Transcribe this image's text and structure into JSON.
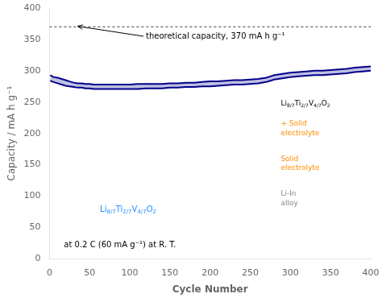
{
  "chart_data": {
    "type": "line",
    "xlabel": "Cycle Number",
    "ylabel": "Capacity / mA h g⁻¹",
    "x": [
      1,
      5,
      10,
      15,
      20,
      25,
      30,
      35,
      40,
      45,
      50,
      55,
      60,
      65,
      70,
      75,
      80,
      85,
      90,
      95,
      100,
      110,
      120,
      130,
      140,
      150,
      160,
      170,
      180,
      190,
      200,
      210,
      220,
      230,
      240,
      250,
      260,
      270,
      275,
      280,
      285,
      290,
      295,
      300,
      310,
      320,
      330,
      340,
      350,
      360,
      370,
      380,
      390,
      400
    ],
    "series": [
      {
        "color": "#00008B",
        "values": [
          293,
          290,
          289,
          287,
          285,
          283,
          281,
          280,
          280,
          279,
          279,
          278,
          278,
          278,
          278,
          278,
          278,
          278,
          278,
          278,
          278,
          279,
          279,
          279,
          279,
          280,
          280,
          281,
          281,
          282,
          283,
          283,
          284,
          285,
          285,
          286,
          287,
          289,
          291,
          293,
          294,
          295,
          296,
          297,
          298,
          299,
          300,
          300,
          301,
          302,
          303,
          305,
          306,
          307
        ]
      },
      {
        "color": "#00008B",
        "values": [
          284,
          282,
          280,
          278,
          276,
          275,
          274,
          273,
          273,
          272,
          272,
          271,
          271,
          271,
          271,
          271,
          271,
          271,
          271,
          271,
          271,
          271,
          272,
          272,
          272,
          273,
          273,
          274,
          274,
          275,
          275,
          276,
          277,
          278,
          278,
          279,
          280,
          282,
          284,
          286,
          287,
          288,
          289,
          290,
          291,
          292,
          293,
          293,
          294,
          295,
          296,
          298,
          299,
          300
        ]
      }
    ],
    "xlim": [
      0,
      400
    ],
    "ylim": [
      0,
      400
    ],
    "xticks": [
      0,
      50,
      100,
      150,
      200,
      250,
      300,
      350,
      400
    ],
    "yticks": [
      0,
      50,
      100,
      150,
      200,
      250,
      300,
      350,
      400
    ],
    "grid": false,
    "reference_lines": [
      {
        "value": 370,
        "color": "#777777",
        "line_style": "dotted"
      }
    ],
    "annotations": [
      {
        "text": "theoretical capacity, 370 mA h g⁻¹",
        "color": "black"
      },
      {
        "text": "at 0.2 C (60 mA g⁻¹) at R. T.",
        "color": "black"
      },
      {
        "text": "Li8/7Ti2/7V4/7O2",
        "color": "#1E90FF"
      },
      {
        "text": "Li8/7Ti2/7V4/7O2",
        "color": "black"
      },
      {
        "text": "+ Solid\nelectrolyte",
        "color": "#FF8C00"
      },
      {
        "text": "Solid\nelectrolyte",
        "color": "#FF8C00"
      },
      {
        "text": "Li-In\nalloy",
        "color": "#888888"
      }
    ]
  }
}
